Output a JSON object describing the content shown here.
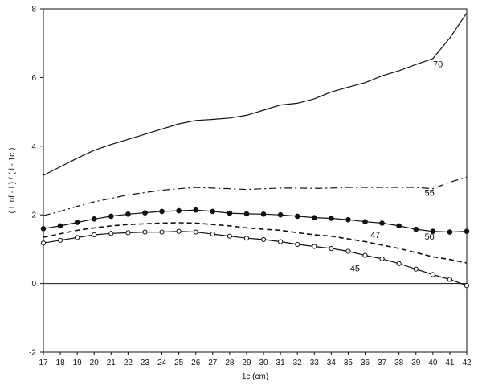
{
  "chart_data": {
    "type": "line",
    "title": "",
    "xlabel": "1c (cm)",
    "ylabel": "( Linf - l ) / ( l - 1c )",
    "xlim": [
      17,
      42
    ],
    "ylim": [
      -2,
      8
    ],
    "xticks": [
      17,
      18,
      19,
      20,
      21,
      22,
      23,
      24,
      25,
      26,
      27,
      28,
      29,
      30,
      31,
      32,
      33,
      34,
      35,
      36,
      37,
      38,
      39,
      40,
      41,
      42
    ],
    "yticks": [
      -2,
      0,
      2,
      4,
      6,
      8
    ],
    "grid": false,
    "reference_line": 0,
    "x": [
      17,
      18,
      19,
      20,
      21,
      22,
      23,
      24,
      25,
      26,
      27,
      28,
      29,
      30,
      31,
      32,
      33,
      34,
      35,
      36,
      37,
      38,
      39,
      40,
      41,
      42
    ],
    "series": [
      {
        "name": "70",
        "style": "solid",
        "marker": "none",
        "values": [
          3.15,
          3.4,
          3.65,
          3.88,
          4.05,
          4.2,
          4.35,
          4.5,
          4.65,
          4.75,
          4.78,
          4.82,
          4.9,
          5.05,
          5.2,
          5.25,
          5.38,
          5.58,
          5.72,
          5.85,
          6.05,
          6.2,
          6.38,
          6.55,
          7.15,
          7.88
        ]
      },
      {
        "name": "55",
        "style": "dashdot",
        "marker": "none",
        "values": [
          1.98,
          2.1,
          2.25,
          2.38,
          2.48,
          2.58,
          2.65,
          2.72,
          2.76,
          2.8,
          2.78,
          2.76,
          2.74,
          2.76,
          2.78,
          2.78,
          2.77,
          2.78,
          2.8,
          2.8,
          2.8,
          2.8,
          2.8,
          2.76,
          2.95,
          3.1
        ]
      },
      {
        "name": "50",
        "style": "solid",
        "marker": "filled-circle",
        "values": [
          1.6,
          1.68,
          1.78,
          1.88,
          1.96,
          2.02,
          2.06,
          2.1,
          2.12,
          2.14,
          2.1,
          2.05,
          2.03,
          2.02,
          2.0,
          1.96,
          1.92,
          1.9,
          1.86,
          1.8,
          1.76,
          1.68,
          1.58,
          1.52,
          1.5,
          1.52
        ]
      },
      {
        "name": "47",
        "style": "dashed",
        "marker": "none",
        "values": [
          1.35,
          1.45,
          1.55,
          1.62,
          1.68,
          1.72,
          1.74,
          1.76,
          1.77,
          1.76,
          1.72,
          1.68,
          1.62,
          1.58,
          1.55,
          1.48,
          1.42,
          1.38,
          1.3,
          1.22,
          1.12,
          1.02,
          0.9,
          0.78,
          0.7,
          0.6
        ]
      },
      {
        "name": "45",
        "style": "solid",
        "marker": "open-circle",
        "values": [
          1.18,
          1.26,
          1.34,
          1.42,
          1.46,
          1.48,
          1.5,
          1.5,
          1.52,
          1.5,
          1.44,
          1.38,
          1.32,
          1.28,
          1.22,
          1.14,
          1.08,
          1.02,
          0.94,
          0.82,
          0.72,
          0.58,
          0.42,
          0.26,
          0.12,
          -0.06
        ]
      }
    ],
    "labels": [
      {
        "series": "70",
        "text": "70",
        "x": 40.3,
        "y": 6.3
      },
      {
        "series": "55",
        "text": "55",
        "x": 39.8,
        "y": 2.55
      },
      {
        "series": "50",
        "text": "50",
        "x": 39.8,
        "y": 1.28
      },
      {
        "series": "47",
        "text": "47",
        "x": 36.6,
        "y": 1.33
      },
      {
        "series": "45",
        "text": "45",
        "x": 35.4,
        "y": 0.35
      }
    ]
  }
}
